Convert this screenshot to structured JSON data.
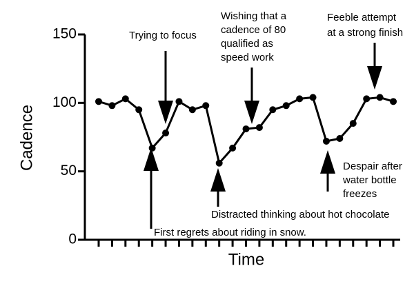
{
  "chart_data": {
    "type": "line",
    "categories": [
      null,
      null,
      null,
      null,
      null,
      null,
      null,
      null,
      null,
      null,
      null,
      null,
      null,
      null,
      null,
      null,
      null,
      null,
      null,
      null,
      null,
      null,
      null
    ],
    "values": [
      101,
      98,
      103,
      95,
      67,
      78,
      101,
      95,
      98,
      56,
      67,
      81,
      82,
      95,
      98,
      103,
      104,
      72,
      74,
      85,
      103,
      104,
      101
    ],
    "color": "#000000",
    "ylim": [
      0,
      150
    ],
    "yticks": [
      0,
      50,
      100,
      150
    ],
    "ylabel": "Cadence",
    "xlabel": "Time",
    "annotations": [
      [
        "Trying to focus"
      ],
      [
        "First regrets about riding in snow."
      ],
      [
        "Distracted thinking about hot chocolate"
      ],
      [
        "Wishing that a",
        "cadence of 80",
        "qualified as",
        "speed work"
      ],
      [
        "Despair after",
        "water bottle",
        "freezes"
      ],
      [
        "Feeble attempt",
        "at a strong finish"
      ]
    ]
  }
}
